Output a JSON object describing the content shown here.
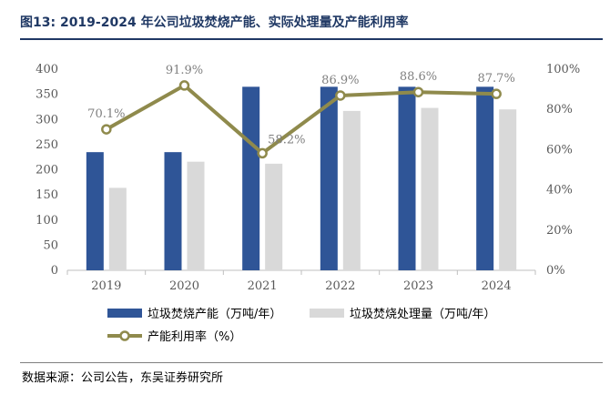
{
  "figure": {
    "title": "图13:  2019-2024 年公司垃圾焚烧产能、实际处理量及产能利用率",
    "source": "数据来源：公司公告，东吴证券研究所"
  },
  "chart_data": {
    "type": "bar",
    "categories": [
      "2019",
      "2020",
      "2021",
      "2022",
      "2023",
      "2024"
    ],
    "series": [
      {
        "name": "垃圾焚烧产能（万吨/年）",
        "type": "bar",
        "axis": "left",
        "color": "#2f5597",
        "values": [
          235,
          235,
          365,
          365,
          365,
          365
        ]
      },
      {
        "name": "垃圾焚烧处理量（万吨/年）",
        "type": "bar",
        "axis": "left",
        "color": "#d9d9d9",
        "values": [
          164,
          216,
          212,
          317,
          323,
          320
        ]
      },
      {
        "name": "产能利用率（%）",
        "type": "line",
        "axis": "right",
        "color": "#8f8a4c",
        "values": [
          70.1,
          91.9,
          58.2,
          86.9,
          88.6,
          87.7
        ],
        "labels": [
          "70.1%",
          "91.9%",
          "58.2%",
          "86.9%",
          "88.6%",
          "87.7%"
        ]
      }
    ],
    "ylim": [
      0,
      400
    ],
    "y_ticks": [
      "0",
      "50",
      "100",
      "150",
      "200",
      "250",
      "300",
      "350",
      "400"
    ],
    "y2lim": [
      0,
      100
    ],
    "y2_ticks": [
      "0%",
      "20%",
      "40%",
      "60%",
      "80%",
      "100%"
    ],
    "grid": false,
    "legend_position": "bottom"
  }
}
